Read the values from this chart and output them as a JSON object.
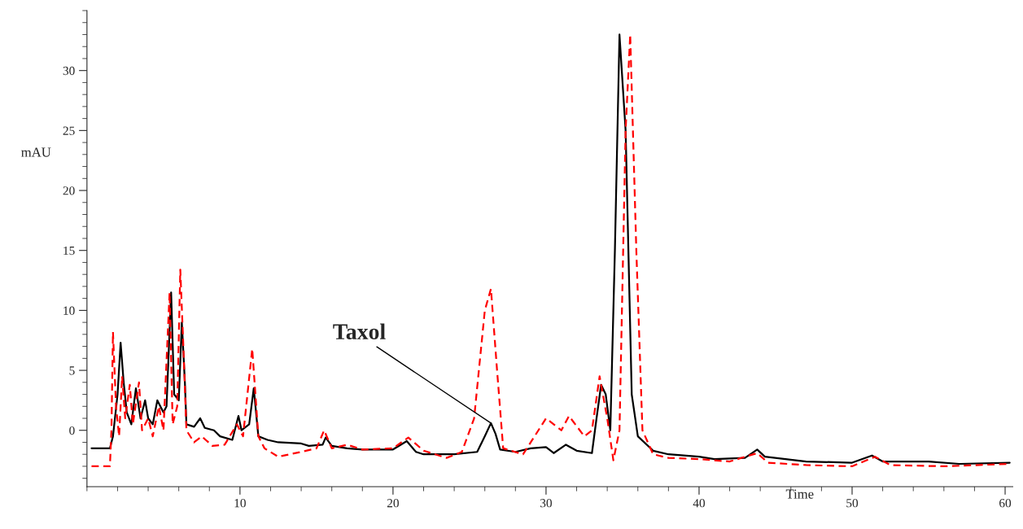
{
  "chart_data": {
    "type": "line",
    "xlabel": "Time",
    "ylabel": "mAU",
    "xlim": [
      0,
      60.5
    ],
    "ylim": [
      -4.7,
      35
    ],
    "xticks": [
      10,
      20,
      30,
      40,
      50,
      60
    ],
    "yticks": [
      0,
      5,
      10,
      15,
      20,
      25,
      30
    ],
    "grid": false,
    "legend": false,
    "marker": "none",
    "annotations": [
      {
        "text": "Taxol",
        "x": 26.4,
        "y": 0.6
      }
    ],
    "series": [
      {
        "color": "#000000",
        "line_style": "solid",
        "x": [
          0.3,
          1.5,
          1.7,
          2.0,
          2.2,
          2.4,
          2.6,
          2.9,
          3.2,
          3.5,
          3.8,
          4.0,
          4.3,
          4.6,
          5.0,
          5.2,
          5.5,
          5.7,
          6.0,
          6.2,
          6.4,
          6.5,
          7.0,
          7.4,
          7.7,
          8.3,
          8.7,
          9.5,
          9.9,
          10.1,
          10.6,
          10.9,
          11.2,
          11.6,
          11.8,
          12.5,
          14,
          14.5,
          15.4,
          15.6,
          16,
          17,
          18,
          20,
          20.9,
          21.5,
          22,
          24,
          25.5,
          26.0,
          26.4,
          26.7,
          27,
          28,
          29,
          30,
          30.5,
          31.3,
          32,
          33,
          33.3,
          33.6,
          33.9,
          34.2,
          34.5,
          34.8,
          35.2,
          35.6,
          36,
          37,
          38,
          40,
          41,
          43,
          43.8,
          44.3,
          47,
          50,
          51.3,
          52,
          55,
          57,
          60.3
        ],
        "values": [
          -1.5,
          -1.5,
          -0.5,
          3,
          7.3,
          4,
          1.5,
          0.5,
          3.5,
          1,
          2.5,
          1,
          0.5,
          2.5,
          1.5,
          2,
          11.5,
          3,
          2.5,
          9,
          4,
          0.5,
          0.3,
          1,
          0.2,
          0,
          -0.5,
          -0.8,
          1.2,
          0,
          0.5,
          3.5,
          -0.5,
          -0.7,
          -0.8,
          -1.0,
          -1.1,
          -1.3,
          -1.2,
          -0.6,
          -1.3,
          -1.5,
          -1.6,
          -1.6,
          -0.9,
          -1.8,
          -2.0,
          -2.0,
          -1.8,
          -0.5,
          0.6,
          -0.3,
          -1.6,
          -1.8,
          -1.5,
          -1.4,
          -1.9,
          -1.2,
          -1.7,
          -1.9,
          1,
          3.8,
          3,
          0,
          15,
          33,
          25,
          3,
          -0.5,
          -1.7,
          -2.0,
          -2.2,
          -2.4,
          -2.3,
          -1.6,
          -2.2,
          -2.6,
          -2.7,
          -2.1,
          -2.6,
          -2.6,
          -2.8,
          -2.7
        ]
      },
      {
        "color": "#ff0000",
        "line_style": "dashed",
        "x": [
          0.3,
          1.5,
          1.6,
          1.7,
          1.9,
          2.1,
          2.3,
          2.5,
          2.8,
          3.0,
          3.4,
          3.6,
          4.0,
          4.3,
          4.7,
          5.0,
          5.4,
          5.6,
          5.9,
          6.1,
          6.3,
          6.5,
          7,
          7.5,
          8.2,
          9,
          9.8,
          10.2,
          10.8,
          11.2,
          11.6,
          12.5,
          14,
          15,
          15.5,
          16,
          17,
          18,
          20,
          21,
          22,
          23.5,
          24.5,
          25.3,
          26.0,
          26.4,
          26.8,
          27.2,
          28.5,
          29.5,
          30,
          30.5,
          31,
          31.5,
          32.5,
          33,
          33.5,
          34.0,
          34.4,
          34.8,
          35.2,
          35.5,
          35.9,
          36.3,
          37,
          38,
          40,
          42,
          43.8,
          44.5,
          47,
          50,
          51.5,
          52.5,
          56,
          60.3
        ],
        "values": [
          -3,
          -3,
          0,
          8.2,
          2,
          -0.5,
          4.5,
          1,
          3.8,
          0.5,
          4,
          0,
          1,
          -0.5,
          2,
          0,
          11.5,
          0.5,
          2,
          13.4,
          7,
          0,
          -1,
          -0.5,
          -1.3,
          -1.2,
          0.5,
          -0.5,
          6.8,
          -0.5,
          -1.5,
          -2.2,
          -1.8,
          -1.5,
          0,
          -1.5,
          -1.2,
          -1.6,
          -1.5,
          -0.6,
          -1.7,
          -2.3,
          -1.8,
          1,
          10,
          11.8,
          5,
          -1.5,
          -2,
          0,
          1,
          0.5,
          0,
          1.2,
          -0.5,
          0,
          4.5,
          1,
          -2.5,
          0,
          25,
          33,
          15,
          0,
          -2,
          -2.3,
          -2.4,
          -2.6,
          -1.9,
          -2.7,
          -2.9,
          -3.0,
          -2.2,
          -2.9,
          -3.0,
          -2.8
        ]
      }
    ]
  }
}
